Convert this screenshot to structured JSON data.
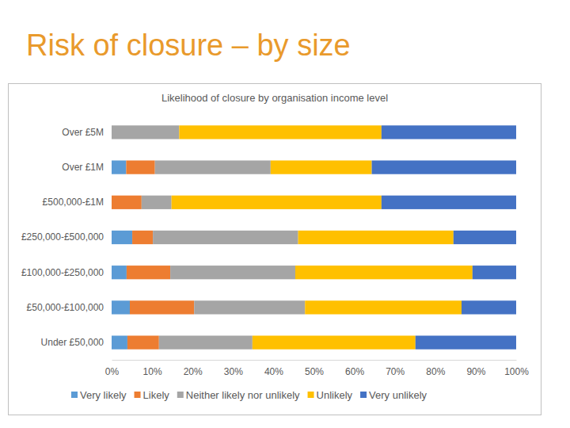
{
  "heading": "Risk of closure – by size",
  "chart_data": {
    "type": "bar",
    "title": "Likelihood of closure by organisation income level",
    "orientation": "horizontal",
    "stacked": true,
    "legend": "bottom",
    "grid": false,
    "categories": [
      "Over £5M",
      "Over £1M",
      "£500,000-£1M",
      "£250,000-£500,000",
      "£100,000-£250,000",
      "£50,000-£100,000",
      "Under £50,000"
    ],
    "series": [
      {
        "name": "Very likely",
        "color": "#5b9bd5",
        "values": [
          0,
          3.6,
          0,
          5.1,
          3.7,
          4.5,
          3.9
        ]
      },
      {
        "name": "Likely",
        "color": "#ed7d31",
        "values": [
          0,
          7.1,
          7.4,
          5.1,
          10.8,
          15.9,
          7.8
        ]
      },
      {
        "name": "Neither likely nor unlikely",
        "color": "#a5a5a5",
        "values": [
          16.7,
          28.6,
          7.4,
          35.9,
          30.9,
          27.4,
          23.1
        ]
      },
      {
        "name": "Unlikely",
        "color": "#ffc000",
        "values": [
          50,
          25,
          51.9,
          38.4,
          43.8,
          38.7,
          40.3
        ]
      },
      {
        "name": "Very unlikely",
        "color": "#4472c4",
        "values": [
          33.3,
          35.7,
          33.3,
          15.5,
          10.8,
          13.5,
          24.9
        ]
      }
    ],
    "xlim": [
      0,
      100
    ],
    "xticks": [
      {
        "value": 0,
        "label": "0%"
      },
      {
        "value": 10,
        "label": "10%"
      },
      {
        "value": 20,
        "label": "20%"
      },
      {
        "value": 30,
        "label": "30%"
      },
      {
        "value": 40,
        "label": "40%"
      },
      {
        "value": 50,
        "label": "50%"
      },
      {
        "value": 60,
        "label": "60%"
      },
      {
        "value": 70,
        "label": "70%"
      },
      {
        "value": 80,
        "label": "80%"
      },
      {
        "value": 90,
        "label": "90%"
      },
      {
        "value": 100,
        "label": "100%"
      }
    ]
  }
}
